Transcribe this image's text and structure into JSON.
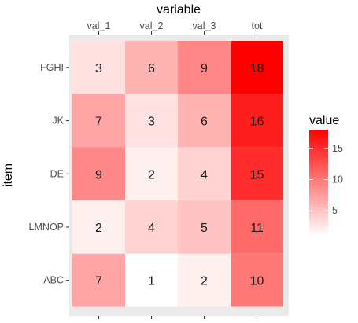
{
  "chart_data": {
    "type": "heatmap",
    "title": "",
    "xlabel": "variable",
    "ylabel": "item",
    "x_position": "top",
    "x_categories": [
      "val_1",
      "val_2",
      "val_3",
      "tot"
    ],
    "y_categories": [
      "FGHI",
      "JK",
      "DE",
      "LMNOP",
      "ABC"
    ],
    "values": [
      [
        3,
        6,
        9,
        18
      ],
      [
        7,
        3,
        6,
        16
      ],
      [
        9,
        2,
        4,
        15
      ],
      [
        2,
        4,
        5,
        11
      ],
      [
        7,
        1,
        2,
        10
      ]
    ],
    "legend": {
      "title": "value",
      "position": "right",
      "ticks": [
        5,
        10,
        15
      ],
      "range": [
        1,
        18
      ]
    },
    "colors": {
      "low": "#ffffff",
      "high": "#ff0000",
      "panel_background": "#ebebeb"
    },
    "grid": false
  }
}
